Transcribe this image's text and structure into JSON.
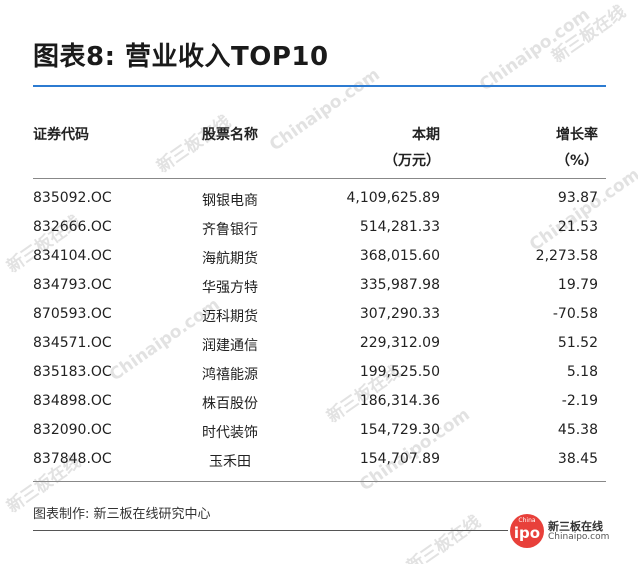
{
  "title": "图表8: 营业收入TOP10",
  "columns": {
    "code": "证券代码",
    "name": "股票名称",
    "current_line1": "本期",
    "current_line2": "（万元）",
    "growth_line1": "增长率",
    "growth_line2": "（%）"
  },
  "rows": [
    {
      "code": "835092.OC",
      "name": "钢银电商",
      "current": "4,109,625.89",
      "growth": "93.87"
    },
    {
      "code": "832666.OC",
      "name": "齐鲁银行",
      "current": "514,281.33",
      "growth": "21.53"
    },
    {
      "code": "834104.OC",
      "name": "海航期货",
      "current": "368,015.60",
      "growth": "2,273.58"
    },
    {
      "code": "834793.OC",
      "name": "华强方特",
      "current": "335,987.98",
      "growth": "19.79"
    },
    {
      "code": "870593.OC",
      "name": "迈科期货",
      "current": "307,290.33",
      "growth": "-70.58"
    },
    {
      "code": "834571.OC",
      "name": "润建通信",
      "current": "229,312.09",
      "growth": "51.52"
    },
    {
      "code": "835183.OC",
      "name": "鸿禧能源",
      "current": "199,525.50",
      "growth": "5.18"
    },
    {
      "code": "834898.OC",
      "name": "株百股份",
      "current": "186,314.36",
      "growth": "-2.19"
    },
    {
      "code": "832090.OC",
      "name": "时代装饰",
      "current": "154,729.30",
      "growth": "45.38"
    },
    {
      "code": "837848.OC",
      "name": "玉禾田",
      "current": "154,707.89",
      "growth": "38.45"
    }
  ],
  "source": "图表制作: 新三板在线研究中心",
  "logo": {
    "badge_top": "China",
    "badge_main": "ipo",
    "name": "新三板在线",
    "site": "Chinaipo.com"
  },
  "watermark": {
    "brand_en": "Chinaipo.com",
    "brand_cn": "新三板在线"
  }
}
